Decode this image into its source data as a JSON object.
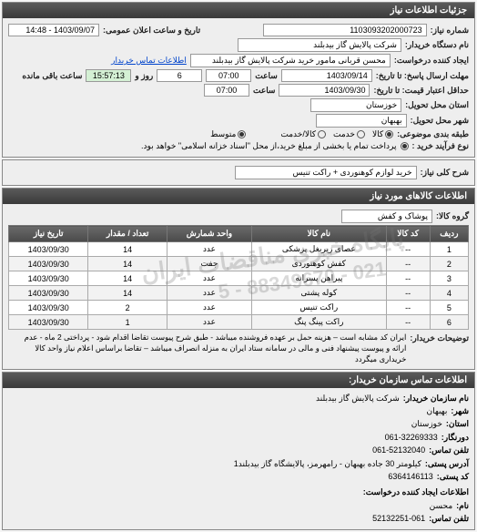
{
  "colors": {
    "header_bg_top": "#5a5a5a",
    "header_bg_bottom": "#3a3a3a",
    "border": "#888888",
    "countdown_bg": "#d4f0d4",
    "link": "#0044cc"
  },
  "panel1": {
    "title": "جزئیات اطلاعات نیاز",
    "fields": {
      "need_no_label": "شماره نیاز:",
      "need_no": "1103093202000723",
      "announce_label": "تاریخ و ساعت اعلان عمومی:",
      "announce_val": "1403/09/07 - 14:48",
      "buyer_org_label": "نام دستگاه خریدار:",
      "buyer_org": "شرکت پالایش گاز بیدبلند",
      "requester_label": "ایجاد کننده درخواست:",
      "requester": "محسن قربانی مامور خرید شرکت پالایش گاز بیدبلند",
      "buyer_contact_link": "اطلاعات تماس خریدار",
      "deadline_label": "مهلت ارسال پاسخ: تا تاریخ:",
      "deadline_date": "1403/09/14",
      "time_label": "ساعت",
      "deadline_time": "07:00",
      "remaining_days": "6",
      "days_and_label": "روز و",
      "remaining_time": "15:57:13",
      "remaining_label": "ساعت باقی مانده",
      "validity_label": "حداقل اعتبار قیمت: تا تاریخ:",
      "validity_date": "1403/09/30",
      "validity_time": "07:00",
      "province_label": "استان محل تحویل:",
      "province": "خوزستان",
      "city_label": "شهر محل تحویل:",
      "city": "بهبهان",
      "budget_label": "طبقه بندی موضوعی:",
      "radio_goods": "کالا",
      "radio_service": "خدمت",
      "radio_goods_service": "کالا/خدمت",
      "size_label": "",
      "size_mid": "متوسط",
      "process_label": "نوع فرآیند خرید :",
      "process_note": "پرداخت تمام یا بخشی از مبلغ خرید،از محل \"اسناد خزانه اسلامی\" خواهد بود."
    }
  },
  "panel2": {
    "title_label": "شرح کلی نیاز:",
    "title_val": "خرید لوازم کوهنوردی + راکت تنیس"
  },
  "panel3": {
    "title": "اطلاعات کالاهای مورد نیاز",
    "group_label": "گروه کالا:",
    "group_val": "پوشاک و کفش",
    "watermark1": "پایگاه خبری مناقضات ایران",
    "watermark2": "021 - 88349670 - 5",
    "columns": {
      "row": "ردیف",
      "code": "کد کالا",
      "name": "نام کالا",
      "unit": "واحد شمارش",
      "qty": "تعداد / مقدار",
      "date": "تاریخ نیاز"
    },
    "rows": [
      {
        "n": "1",
        "code": "--",
        "name": "عصای زیربغل پزشکی",
        "unit": "عدد",
        "qty": "14",
        "date": "1403/09/30"
      },
      {
        "n": "2",
        "code": "--",
        "name": "کفش کوهنوردی",
        "unit": "جفت",
        "qty": "14",
        "date": "1403/09/30"
      },
      {
        "n": "3",
        "code": "--",
        "name": "پیراهن پسرانه",
        "unit": "عدد",
        "qty": "14",
        "date": "1403/09/30"
      },
      {
        "n": "4",
        "code": "--",
        "name": "کوله پشتی",
        "unit": "عدد",
        "qty": "14",
        "date": "1403/09/30"
      },
      {
        "n": "5",
        "code": "--",
        "name": "راکت تنیس",
        "unit": "عدد",
        "qty": "2",
        "date": "1403/09/30"
      },
      {
        "n": "6",
        "code": "--",
        "name": "راکت پینگ پنگ",
        "unit": "عدد",
        "qty": "1",
        "date": "1403/09/30"
      }
    ],
    "note_label": "توضیحات خریدار:",
    "note_text": "ایران کد مشابه است – هزینه حمل بر عهده فروشنده میباشد - طبق شرح پیوست تقاضا اقدام شود - پرداختی 2 ماه - عدم ارائه و پیوست پیشنهاد فنی و مالی در سامانه ستاد ایران به منزله انصراف میباشد – تقاضا براساس اعلام نیاز واحد کالا خریداری میگردد"
  },
  "panel4": {
    "title": "اطلاعات تماس سازمان خریدار:",
    "org_label": "نام سازمان خریدار:",
    "org_val": "شرکت پالایش گاز بیدبلند",
    "city_label": "شهر:",
    "city_val": "بهبهان",
    "province_label": "استان:",
    "province_val": "خوزستان",
    "fax_label": "دورنگار:",
    "fax_val": "061-32269333",
    "phone_label": "تلفن تماس:",
    "phone_val": "061-52132040",
    "addr_label": "آدرس پستی:",
    "addr_val": "کیلومتر 30 جاده بهبهان - رامهرمز، پالایشگاه گاز بیدبلند1",
    "post_label": "کد پستی:",
    "post_val": "6364146113",
    "creator_title": "اطلاعات ایجاد کننده درخواست:",
    "name_label": "نام:",
    "name_val": "محسن",
    "cphone_label": "تلفن تماس:",
    "cphone_val": "52132251-061"
  }
}
